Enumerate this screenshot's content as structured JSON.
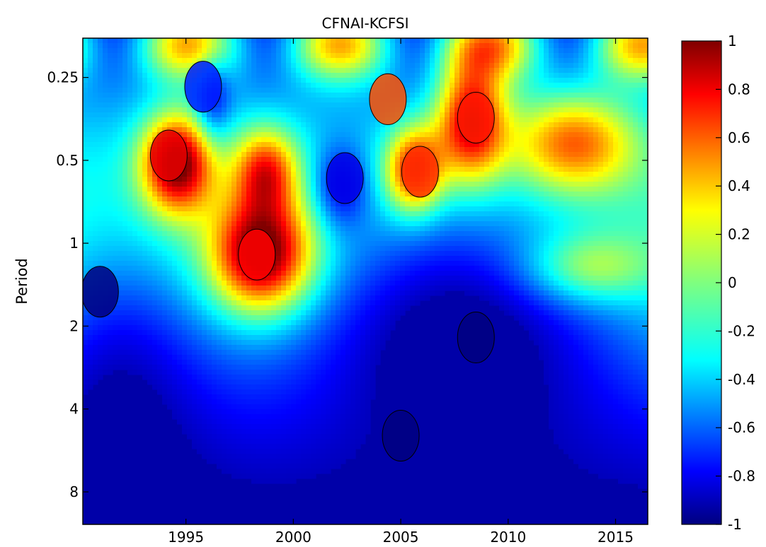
{
  "chart_data": {
    "type": "heatmap",
    "title": "CFNAI-KCFSI",
    "xlabel": "",
    "ylabel": "Period",
    "x_ticks": [
      "1995",
      "2000",
      "2005",
      "2010",
      "2015"
    ],
    "x_tick_values": [
      1995,
      2000,
      2005,
      2010,
      2015
    ],
    "xlim": [
      1990.2,
      2016.5
    ],
    "y_ticks": [
      "0.25",
      "0.5",
      "1",
      "2",
      "4",
      "8"
    ],
    "y_tick_values": [
      0.25,
      0.5,
      1,
      2,
      4,
      8
    ],
    "ylim": [
      0.18,
      10.5
    ],
    "y_scale": "log2",
    "y_inverted": true,
    "colorbar": {
      "ticks": [
        "1",
        "0.8",
        "0.6",
        "0.4",
        "0.2",
        "0",
        "-0.2",
        "-0.4",
        "-0.6",
        "-0.8",
        "-1"
      ],
      "tick_values": [
        1,
        0.8,
        0.6,
        0.4,
        0.2,
        0,
        -0.2,
        -0.4,
        -0.6,
        -0.8,
        -1
      ],
      "range": [
        -1,
        1
      ],
      "colormap": "jet"
    },
    "features": [
      {
        "year": 1994.2,
        "period": 0.48,
        "value": 0.8
      },
      {
        "year": 1998.3,
        "period": 1.1,
        "value": 0.75
      },
      {
        "year": 2008.5,
        "period": 0.35,
        "value": 0.7
      },
      {
        "year": 2005.9,
        "period": 0.55,
        "value": 0.65
      },
      {
        "year": 2004.4,
        "period": 0.3,
        "value": 0.6
      },
      {
        "year": 2002.4,
        "period": 0.58,
        "value": -0.8
      },
      {
        "year": 1995.8,
        "period": 0.27,
        "value": -0.7
      },
      {
        "year": 2008.5,
        "period": 2.2,
        "value": -1.0
      },
      {
        "year": 1991.0,
        "period": 1.5,
        "value": -1.0
      },
      {
        "year": 2005.0,
        "period": 5.0,
        "value": -1.0
      }
    ]
  }
}
